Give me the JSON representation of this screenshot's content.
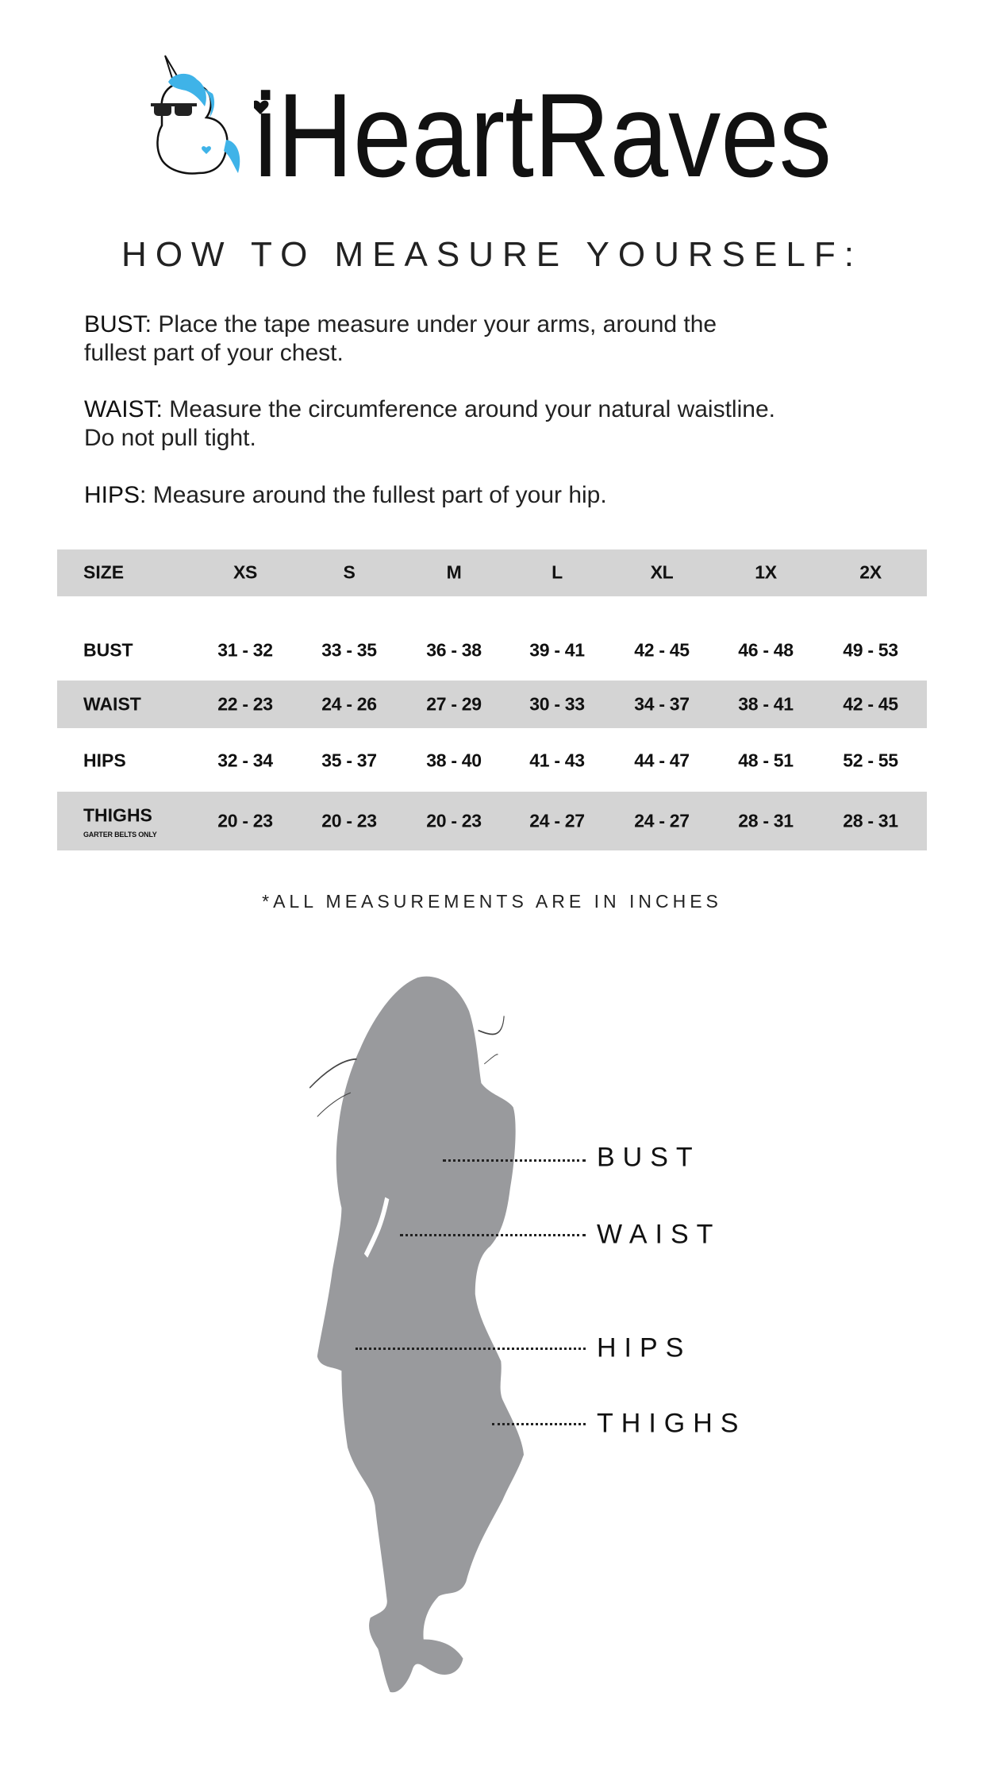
{
  "brand": {
    "name": "iHeartRaves",
    "accent": "#3fb3e8"
  },
  "title": "HOW TO MEASURE YOURSELF:",
  "instructions": [
    {
      "label": "BUST:",
      "lines": [
        "Place the tape measure under your arms, around the",
        "fullest part of your chest."
      ]
    },
    {
      "label": "WAIST:",
      "lines": [
        "Measure the circumference around your natural waistline.",
        "Do not pull tight."
      ]
    },
    {
      "label": "HIPS:",
      "lines": [
        "Measure around the fullest part of your hip."
      ]
    }
  ],
  "size_table": {
    "header": [
      "SIZE",
      "XS",
      "S",
      "M",
      "L",
      "XL",
      "1X",
      "2X"
    ],
    "rows": [
      {
        "label": "BUST",
        "values": [
          "31 - 32",
          "33 - 35",
          "36 - 38",
          "39 - 41",
          "42 - 45",
          "46 - 48",
          "49 - 53"
        ]
      },
      {
        "label": "WAIST",
        "values": [
          "22 - 23",
          "24 - 26",
          "27 - 29",
          "30 - 33",
          "34 - 37",
          "38 - 41",
          "42 - 45"
        ]
      },
      {
        "label": "HIPS",
        "values": [
          "32 - 34",
          "35 - 37",
          "38 - 40",
          "41 - 43",
          "44 - 47",
          "48 - 51",
          "52 - 55"
        ]
      },
      {
        "label": "THIGHS",
        "note": "GARTER BELTS ONLY",
        "values": [
          "20 - 23",
          "20 - 23",
          "20 - 23",
          "24 - 27",
          "24 - 27",
          "28 - 31",
          "28 - 31"
        ]
      }
    ]
  },
  "footnote": "*ALL MEASUREMENTS ARE IN INCHES",
  "diagram_labels": {
    "bust": "BUST",
    "waist": "WAIST",
    "hips": "HIPS",
    "thighs": "THIGHS"
  },
  "colors": {
    "band": "#d4d4d4",
    "silhouette": "#999a9d"
  }
}
